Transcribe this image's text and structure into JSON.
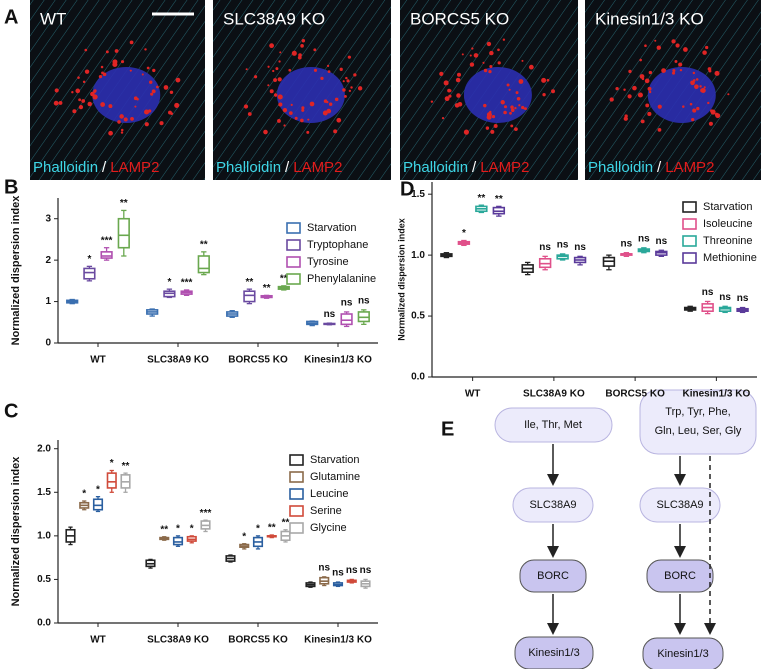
{
  "panel_a": {
    "letter": "A",
    "images": [
      "WT",
      "SLC38A9 KO",
      "BORCS5 KO",
      "Kinesin1/3 KO"
    ],
    "stain": {
      "phalloidin": "Phalloidin",
      "separator": "/",
      "lamp2": "LAMP2"
    }
  },
  "chart_data": [
    {
      "type": "box",
      "letter": "B",
      "ylabel": "Normalized dispersion index",
      "categories": [
        "WT",
        "SLC38A9 KO",
        "BORCS5 KO",
        "Kinesin1/3 KO"
      ],
      "ylim": [
        0,
        3.5
      ],
      "yticks": [
        0,
        1,
        2,
        3
      ],
      "series": [
        {
          "name": "Starvation",
          "color": "#3a6fb0",
          "values": [
            [
              0.95,
              0.97,
              1.0,
              1.03,
              1.05
            ],
            [
              0.65,
              0.7,
              0.75,
              0.8,
              0.82
            ],
            [
              0.62,
              0.65,
              0.7,
              0.75,
              0.78
            ],
            [
              0.42,
              0.45,
              0.48,
              0.52,
              0.53
            ]
          ],
          "labels": [
            null,
            null,
            null,
            null
          ]
        },
        {
          "name": "Tryptophane",
          "color": "#6a4aa0",
          "values": [
            [
              1.5,
              1.55,
              1.7,
              1.8,
              1.85
            ],
            [
              1.1,
              1.12,
              1.2,
              1.25,
              1.3
            ],
            [
              0.95,
              1.0,
              1.15,
              1.25,
              1.3
            ],
            [
              0.44,
              0.45,
              0.46,
              0.47,
              0.48
            ]
          ],
          "labels": [
            "*",
            "*",
            "**",
            "ns"
          ]
        },
        {
          "name": "Tyrosine",
          "color": "#b050b0",
          "values": [
            [
              2.0,
              2.05,
              2.1,
              2.2,
              2.3
            ],
            [
              1.15,
              1.18,
              1.22,
              1.25,
              1.28
            ],
            [
              1.08,
              1.1,
              1.12,
              1.14,
              1.15
            ],
            [
              0.4,
              0.45,
              0.55,
              0.7,
              0.75
            ]
          ],
          "labels": [
            "***",
            "***",
            "**",
            "ns"
          ]
        },
        {
          "name": "Phenylalanine",
          "color": "#6aa84f",
          "values": [
            [
              2.1,
              2.3,
              2.6,
              3.0,
              3.2
            ],
            [
              1.65,
              1.7,
              1.8,
              2.1,
              2.2
            ],
            [
              1.28,
              1.3,
              1.33,
              1.36,
              1.38
            ],
            [
              0.45,
              0.52,
              0.62,
              0.75,
              0.8
            ]
          ],
          "labels": [
            "**",
            "**",
            "**",
            "ns"
          ]
        }
      ]
    },
    {
      "type": "box",
      "letter": "C",
      "ylabel": "Normalized dispersion index",
      "categories": [
        "WT",
        "SLC38A9 KO",
        "BORCS5 KO",
        "Kinesin1/3 KO"
      ],
      "ylim": [
        0,
        2.1
      ],
      "yticks": [
        {
          "value": 0,
          "label": "0.0"
        },
        0.5,
        {
          "value": 1,
          "label": "1.0"
        },
        1.5,
        {
          "value": 2,
          "label": "2.0"
        }
      ],
      "series": [
        {
          "name": "Starvation",
          "color": "#222222",
          "values": [
            [
              0.9,
              0.93,
              1.0,
              1.07,
              1.1
            ],
            [
              0.63,
              0.65,
              0.68,
              0.72,
              0.73
            ],
            [
              0.7,
              0.71,
              0.74,
              0.77,
              0.78
            ],
            [
              0.41,
              0.42,
              0.44,
              0.46,
              0.47
            ]
          ],
          "labels": [
            null,
            null,
            null,
            null
          ]
        },
        {
          "name": "Glutamine",
          "color": "#8b6a4a",
          "values": [
            [
              1.3,
              1.32,
              1.35,
              1.38,
              1.4
            ],
            [
              0.95,
              0.96,
              0.97,
              0.98,
              0.99
            ],
            [
              0.85,
              0.87,
              0.88,
              0.9,
              0.91
            ],
            [
              0.43,
              0.45,
              0.48,
              0.52,
              0.53
            ]
          ],
          "labels": [
            "*",
            "**",
            "*",
            "ns"
          ]
        },
        {
          "name": "Leucine",
          "color": "#2a5fa0",
          "values": [
            [
              1.28,
              1.3,
              1.35,
              1.42,
              1.45
            ],
            [
              0.88,
              0.9,
              0.93,
              0.98,
              1.0
            ],
            [
              0.85,
              0.88,
              0.93,
              0.98,
              1.0
            ],
            [
              0.42,
              0.43,
              0.44,
              0.46,
              0.47
            ]
          ],
          "labels": [
            "*",
            "*",
            "*",
            "ns"
          ]
        },
        {
          "name": "Serine",
          "color": "#d04a3a",
          "values": [
            [
              1.5,
              1.55,
              1.62,
              1.72,
              1.75
            ],
            [
              0.92,
              0.94,
              0.96,
              0.99,
              1.0
            ],
            [
              0.98,
              0.99,
              1.0,
              1.0,
              1.01
            ],
            [
              0.46,
              0.47,
              0.48,
              0.49,
              0.5
            ]
          ],
          "labels": [
            "*",
            "*",
            "**",
            "ns"
          ]
        },
        {
          "name": "Glycine",
          "color": "#a8a8a8",
          "values": [
            [
              1.5,
              1.55,
              1.62,
              1.7,
              1.72
            ],
            [
              1.05,
              1.08,
              1.12,
              1.17,
              1.18
            ],
            [
              0.93,
              0.95,
              1.0,
              1.05,
              1.07
            ],
            [
              0.4,
              0.42,
              0.45,
              0.48,
              0.5
            ]
          ],
          "labels": [
            "**",
            "***",
            "**",
            "ns"
          ]
        }
      ]
    },
    {
      "type": "box",
      "letter": "D",
      "ylabel": "Normalized dispersion index",
      "categories": [
        "WT",
        "SLC38A9 KO",
        "BORCS5 KO",
        "Kinesin1/3 KO"
      ],
      "ylim": [
        0,
        1.6
      ],
      "yticks": [
        {
          "value": 0,
          "label": "0.0"
        },
        0.5,
        {
          "value": 1,
          "label": "1.0"
        },
        1.5
      ],
      "series": [
        {
          "name": "Starvation",
          "color": "#222222",
          "values": [
            [
              0.98,
              0.99,
              1.0,
              1.01,
              1.02
            ],
            [
              0.84,
              0.86,
              0.89,
              0.92,
              0.94
            ],
            [
              0.88,
              0.91,
              0.95,
              0.98,
              1.0
            ],
            [
              0.54,
              0.55,
              0.56,
              0.57,
              0.58
            ]
          ],
          "labels": [
            null,
            null,
            null,
            null
          ]
        },
        {
          "name": "Isoleucine",
          "color": "#e0508a",
          "values": [
            [
              1.08,
              1.09,
              1.1,
              1.11,
              1.12
            ],
            [
              0.88,
              0.9,
              0.93,
              0.97,
              0.99
            ],
            [
              0.99,
              1.0,
              1.01,
              1.01,
              1.02
            ],
            [
              0.52,
              0.54,
              0.57,
              0.6,
              0.62
            ]
          ],
          "labels": [
            "*",
            "ns",
            "ns",
            "ns"
          ]
        },
        {
          "name": "Threonine",
          "color": "#2aa89a",
          "values": [
            [
              1.35,
              1.36,
              1.38,
              1.4,
              1.41
            ],
            [
              0.96,
              0.97,
              0.99,
              1.0,
              1.01
            ],
            [
              1.02,
              1.03,
              1.04,
              1.05,
              1.06
            ],
            [
              0.53,
              0.54,
              0.56,
              0.57,
              0.58
            ]
          ],
          "labels": [
            "**",
            "ns",
            "ns",
            "ns"
          ]
        },
        {
          "name": "Methionine",
          "color": "#5a3a9a",
          "values": [
            [
              1.32,
              1.34,
              1.36,
              1.39,
              1.4
            ],
            [
              0.92,
              0.94,
              0.96,
              0.98,
              0.99
            ],
            [
              0.99,
              1.0,
              1.02,
              1.03,
              1.04
            ],
            [
              0.53,
              0.54,
              0.55,
              0.56,
              0.57
            ]
          ],
          "labels": [
            "**",
            "ns",
            "ns",
            "ns"
          ]
        }
      ]
    }
  ],
  "panel_e": {
    "letter": "E",
    "nodes": [
      {
        "label": "Ile, Thr, Met"
      },
      {
        "label": "SLC38A9"
      },
      {
        "label": "BORC"
      },
      {
        "label": "Kinesin1/3"
      },
      {
        "lines": [
          "Trp, Tyr, Phe,",
          "Gln, Leu, Ser, Gly"
        ]
      },
      {
        "label": "SLC38A9"
      },
      {
        "label": "BORC"
      },
      {
        "label": "Kinesin1/3"
      }
    ]
  }
}
